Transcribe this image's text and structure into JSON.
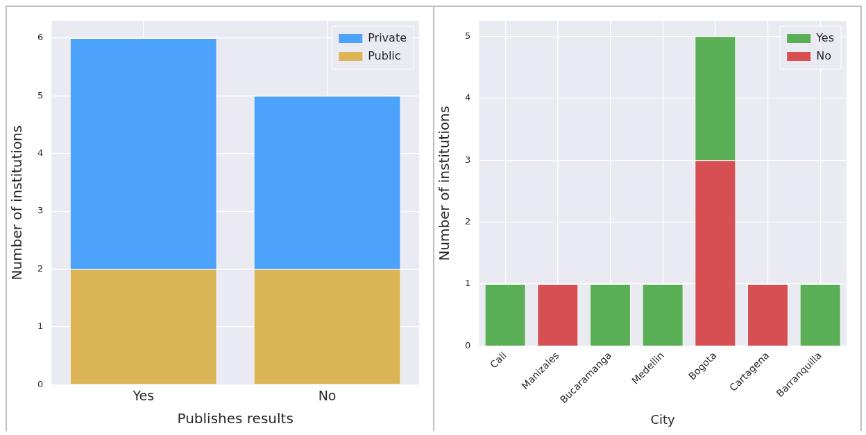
{
  "chart_data": [
    {
      "type": "bar",
      "stacked": true,
      "xlabel": "Publishes results",
      "ylabel": "Number of institutions",
      "categories": [
        "Yes",
        "No"
      ],
      "series": [
        {
          "name": "Public",
          "color": "#dab455",
          "values": [
            2,
            2
          ]
        },
        {
          "name": "Private",
          "color": "#4da3fb",
          "values": [
            4,
            3
          ]
        }
      ],
      "ylim": [
        0,
        6.3
      ],
      "yticks": [
        0,
        1,
        2,
        3,
        4,
        5,
        6
      ],
      "grid": true,
      "legend": "top right"
    },
    {
      "type": "bar",
      "stacked": true,
      "xlabel": "City",
      "ylabel": "Number of institutions",
      "categories": [
        "Cali",
        "Manizales",
        "Bucaramanga",
        "Medellin",
        "Bogota",
        "Cartagena",
        "Barranquilla"
      ],
      "series": [
        {
          "name": "No",
          "color": "#d64f52",
          "values": [
            null,
            1,
            null,
            null,
            3,
            1,
            null
          ]
        },
        {
          "name": "Yes",
          "color": "#5aae55",
          "values": [
            1,
            null,
            1,
            1,
            2,
            null,
            1
          ]
        }
      ],
      "ylim": [
        0,
        5.25
      ],
      "yticks": [
        0,
        1,
        2,
        3,
        4,
        5
      ],
      "grid": true,
      "legend": "top right"
    }
  ]
}
